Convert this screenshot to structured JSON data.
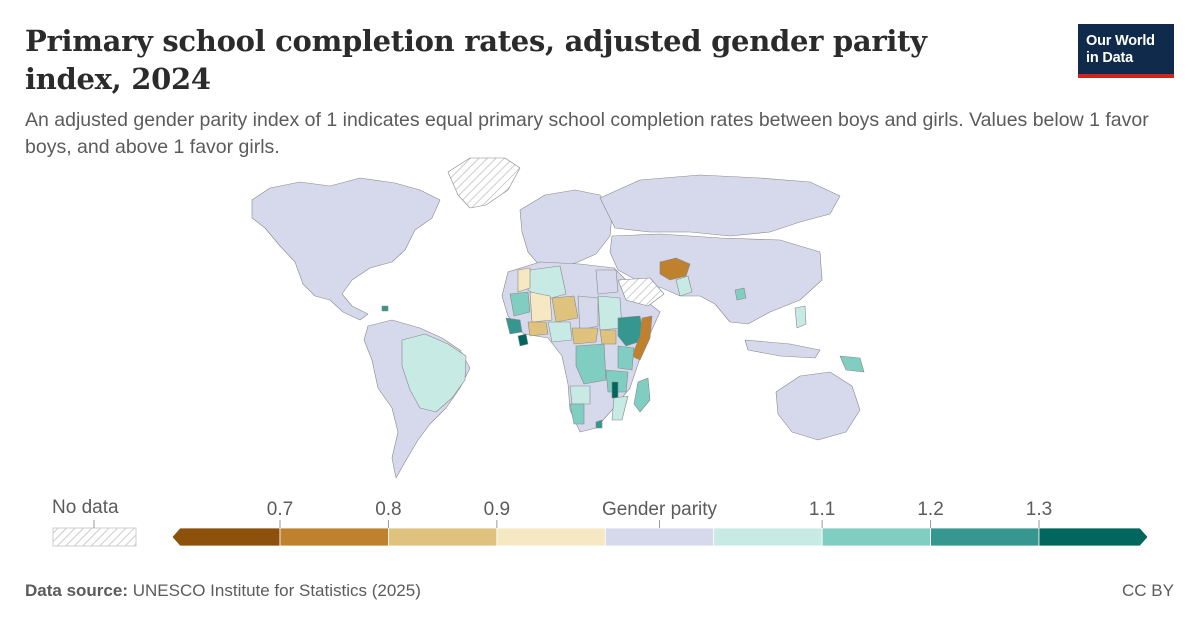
{
  "title": "Primary school completion rates, adjusted gender parity index, 2024",
  "subtitle": "An adjusted gender parity index of 1 indicates equal primary school completion rates between boys and girls. Values below 1 favor boys, and above 1 favor girls.",
  "logo": {
    "line1": "Our World",
    "line2": "in Data"
  },
  "legend": {
    "no_data_label": "No data",
    "tick_labels": [
      "0.7",
      "0.8",
      "0.9",
      "Gender parity",
      "1.1",
      "1.2",
      "1.3"
    ],
    "bins": [
      {
        "range": "< 0.7",
        "color": "#8c510a"
      },
      {
        "range": "0.7–0.8",
        "color": "#bf812d"
      },
      {
        "range": "0.8–0.9",
        "color": "#dfc27d"
      },
      {
        "range": "0.9–0.97",
        "color": "#f6e8c3"
      },
      {
        "range": "0.97–1.03",
        "color": "#d6d9ec"
      },
      {
        "range": "1.03–1.1",
        "color": "#c7eae5"
      },
      {
        "range": "1.1–1.2",
        "color": "#80cdc1"
      },
      {
        "range": "1.2–1.3",
        "color": "#35978f"
      },
      {
        "range": "> 1.3",
        "color": "#01665e"
      }
    ]
  },
  "footer": {
    "source_label": "Data source:",
    "source_text": "UNESCO Institute for Statistics (2025)",
    "license": "CC BY"
  },
  "colors": {
    "parity": "#d6d9ec",
    "favor_boys_strong": "#bf812d",
    "favor_boys": "#dfc27d",
    "favor_boys_light": "#f6e8c3",
    "favor_girls_light": "#c7eae5",
    "favor_girls": "#80cdc1",
    "favor_girls_strong": "#35978f",
    "favor_girls_max": "#01665e",
    "no_data_hatch": "#cccccc",
    "border": "#888888"
  }
}
